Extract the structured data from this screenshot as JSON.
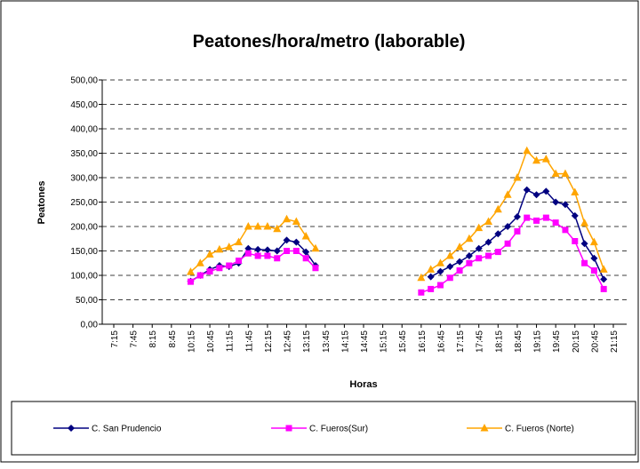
{
  "chart_data": {
    "type": "line",
    "title": "Peatones/hora/metro (laborable)",
    "x_label": "Horas",
    "y_label": "Peatones",
    "categories": [
      "7:15",
      null,
      "7:45",
      null,
      "8:15",
      null,
      "8:45",
      null,
      "10:15",
      null,
      "10:45",
      null,
      "11:15",
      null,
      "11:45",
      null,
      "12:15",
      null,
      "12:45",
      null,
      "13:15",
      null,
      "13:45",
      null,
      "14:15",
      null,
      "14:45",
      null,
      "15:15",
      null,
      "15:45",
      null,
      "16:15",
      null,
      "16:45",
      null,
      "17:15",
      null,
      "17:45",
      null,
      "18:15",
      null,
      "18:45",
      null,
      "19:15",
      null,
      "19:45",
      null,
      "20:15",
      null,
      "20:45",
      null,
      "21:15"
    ],
    "ylim": [
      0,
      500
    ],
    "yticks": [
      {
        "value": 0,
        "label": "0,00"
      },
      {
        "value": 50,
        "label": "50,00"
      },
      {
        "value": 100,
        "label": "100,00"
      },
      {
        "value": 150,
        "label": "150,00"
      },
      {
        "value": 200,
        "label": "200,00"
      },
      {
        "value": 250,
        "label": "250,00"
      },
      {
        "value": 300,
        "label": "300,00"
      },
      {
        "value": 350,
        "label": "350,00"
      },
      {
        "value": 400,
        "label": "400,00"
      },
      {
        "value": 450,
        "label": "450,00"
      },
      {
        "value": 500,
        "label": "500,00"
      }
    ],
    "grid": true,
    "legend": "bottom",
    "series": [
      {
        "name": "C. San Prudencio",
        "color": "#000080",
        "marker": "diamond",
        "values": [
          null,
          null,
          null,
          null,
          null,
          null,
          null,
          null,
          88,
          100,
          112,
          120,
          118,
          125,
          155,
          153,
          152,
          150,
          172,
          168,
          148,
          120,
          null,
          null,
          null,
          null,
          null,
          null,
          null,
          null,
          null,
          null,
          null,
          97,
          108,
          118,
          128,
          140,
          155,
          168,
          185,
          200,
          220,
          275,
          265,
          272,
          250,
          245,
          222,
          165,
          135,
          92,
          null
        ]
      },
      {
        "name": "C. Fueros(Sur)",
        "color": "#ff00ff",
        "marker": "square",
        "values": [
          null,
          null,
          null,
          null,
          null,
          null,
          null,
          null,
          87,
          100,
          108,
          115,
          120,
          130,
          145,
          140,
          140,
          135,
          150,
          150,
          135,
          115,
          null,
          null,
          null,
          null,
          null,
          null,
          null,
          null,
          null,
          null,
          65,
          72,
          80,
          95,
          110,
          125,
          135,
          140,
          148,
          165,
          190,
          218,
          212,
          218,
          208,
          193,
          170,
          125,
          110,
          72,
          null
        ]
      },
      {
        "name": "C. Fueros (Norte)",
        "color": "#ffa500",
        "marker": "triangle",
        "values": [
          null,
          null,
          null,
          null,
          null,
          null,
          null,
          null,
          107,
          125,
          143,
          153,
          158,
          168,
          200,
          200,
          200,
          195,
          215,
          210,
          180,
          155,
          null,
          null,
          null,
          null,
          null,
          null,
          null,
          null,
          null,
          null,
          95,
          112,
          125,
          140,
          158,
          175,
          197,
          210,
          235,
          265,
          300,
          355,
          335,
          338,
          308,
          308,
          270,
          207,
          168,
          112,
          null
        ]
      }
    ]
  }
}
